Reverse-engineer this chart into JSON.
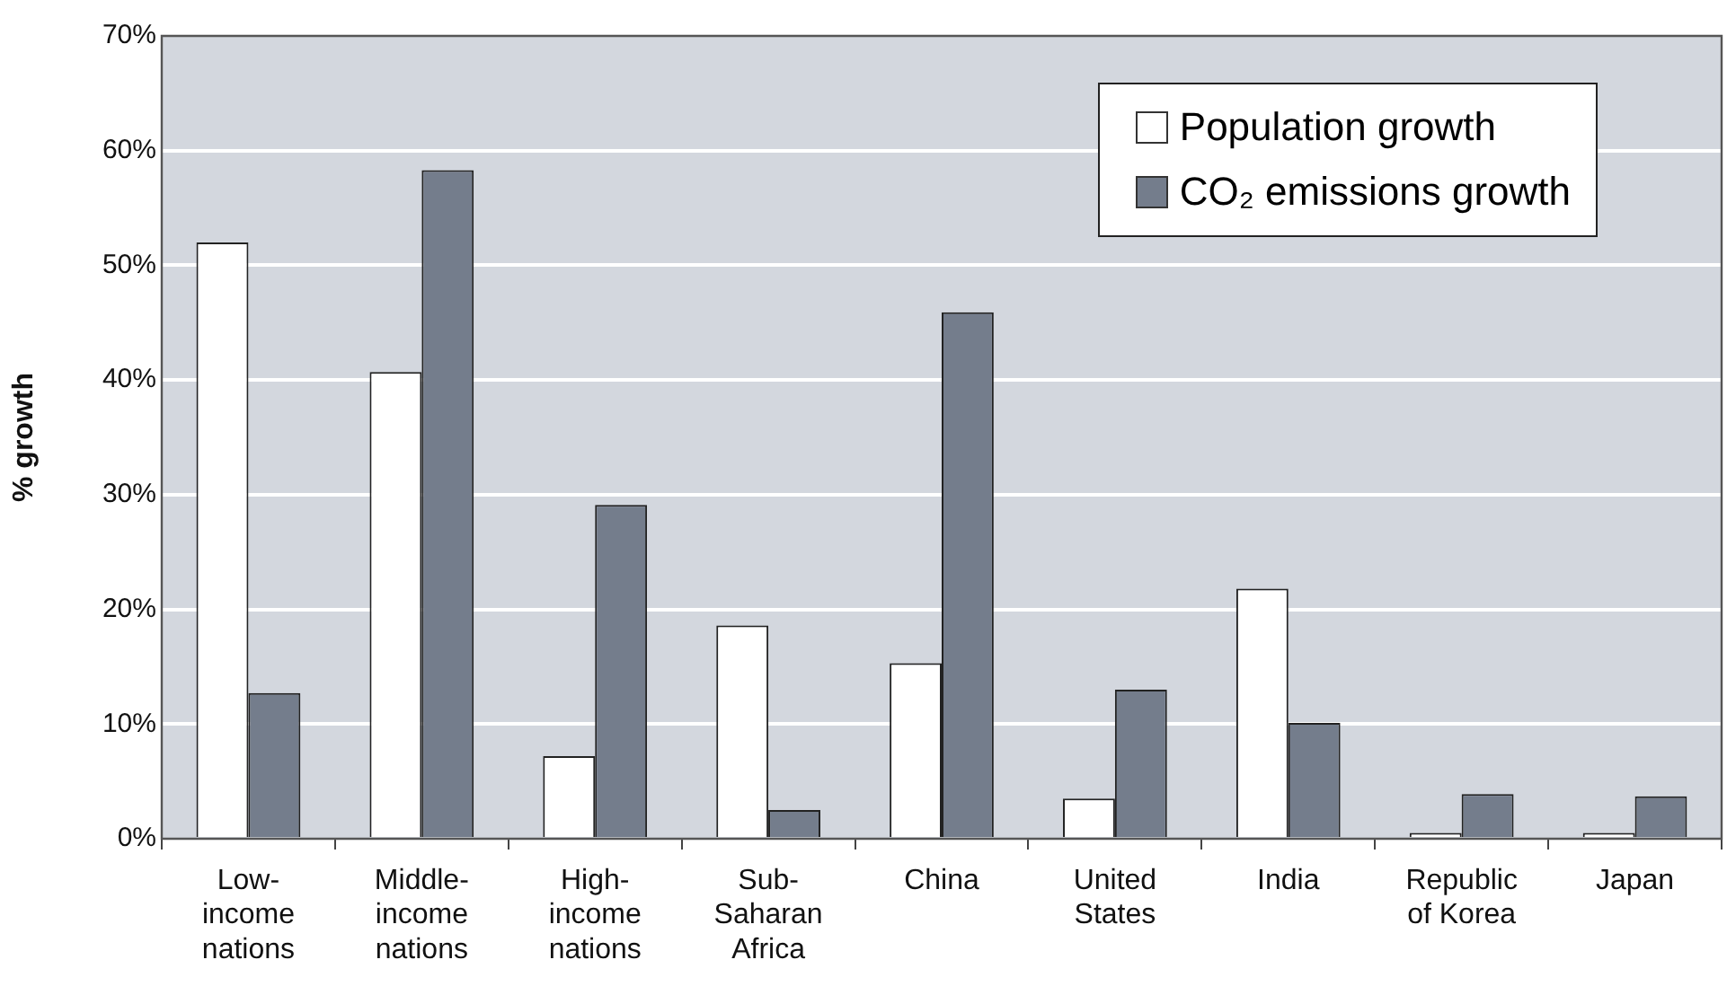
{
  "chart_data": {
    "type": "bar",
    "ylabel": "% growth",
    "categories": [
      "Low-\nincome\nnations",
      "Middle-\nincome\nnations",
      "High-\nincome\nnations",
      "Sub-\nSaharan\nAfrica",
      "China",
      "United\nStates",
      "India",
      "Republic\nof Korea",
      "Japan"
    ],
    "series": [
      {
        "name": "Population growth",
        "color": "#ffffff",
        "values": [
          52.0,
          40.7,
          7.2,
          18.6,
          15.3,
          3.5,
          21.8,
          0.5,
          0.5
        ]
      },
      {
        "name": "CO₂ emissions growth",
        "color": "#747d8c",
        "values": [
          12.7,
          58.3,
          29.1,
          2.5,
          45.9,
          13.0,
          10.1,
          3.9,
          3.7
        ]
      }
    ],
    "ylim": [
      0,
      70
    ],
    "yticks": [
      {
        "value": 0,
        "label": "0%"
      },
      {
        "value": 10,
        "label": "10%"
      },
      {
        "value": 20,
        "label": "20%"
      },
      {
        "value": 30,
        "label": "30%"
      },
      {
        "value": 40,
        "label": "40%"
      },
      {
        "value": 50,
        "label": "50%"
      },
      {
        "value": 60,
        "label": "60%"
      },
      {
        "value": 70,
        "label": "70%"
      }
    ],
    "grid": "y",
    "legend": "top right"
  }
}
